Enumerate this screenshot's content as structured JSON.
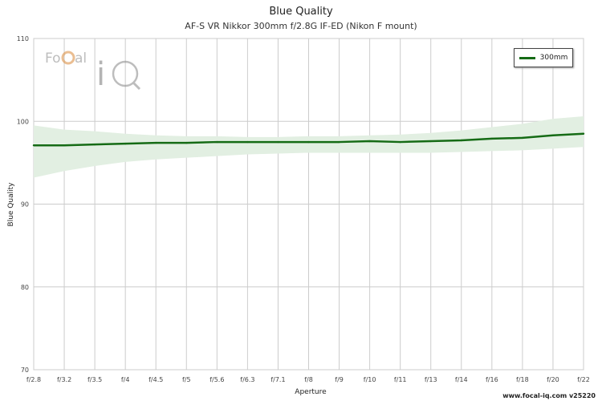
{
  "chart_data": {
    "type": "line",
    "title": "Blue Quality",
    "subtitle": "AF-S VR Nikkor 300mm f/2.8G IF-ED (Nikon F mount)",
    "xlabel": "Aperture",
    "ylabel": "Blue Quality",
    "categories": [
      "f/2.8",
      "f/3.2",
      "f/3.5",
      "f/4",
      "f/4.5",
      "f/5",
      "f/5.6",
      "f/6.3",
      "f/7.1",
      "f/8",
      "f/9",
      "f/10",
      "f/11",
      "f/13",
      "f/14",
      "f/16",
      "f/18",
      "f/20",
      "f/22"
    ],
    "ylim": [
      70,
      110
    ],
    "yticks": [
      70,
      80,
      90,
      100,
      110
    ],
    "series": [
      {
        "name": "300mm",
        "color": "#156b15",
        "values": [
          97.1,
          97.1,
          97.2,
          97.3,
          97.4,
          97.4,
          97.5,
          97.5,
          97.5,
          97.5,
          97.5,
          97.6,
          97.5,
          97.6,
          97.7,
          97.9,
          98.0,
          98.3,
          98.5
        ],
        "band_upper": [
          99.5,
          99.0,
          98.8,
          98.5,
          98.3,
          98.2,
          98.2,
          98.1,
          98.1,
          98.2,
          98.2,
          98.3,
          98.4,
          98.6,
          98.9,
          99.3,
          99.7,
          100.3,
          100.6
        ],
        "band_lower": [
          93.2,
          94.0,
          94.6,
          95.1,
          95.4,
          95.6,
          95.8,
          96.0,
          96.1,
          96.2,
          96.2,
          96.2,
          96.2,
          96.2,
          96.3,
          96.4,
          96.5,
          96.7,
          96.9
        ]
      }
    ],
    "grid": true,
    "legend_position": "top-right",
    "band_color": "#e2efe2"
  },
  "logo": {
    "text": "FocalIQ",
    "part1": "Fo",
    "part2": "al",
    "part3": "iQ"
  },
  "footer": "www.focal-iq.com  v25220"
}
